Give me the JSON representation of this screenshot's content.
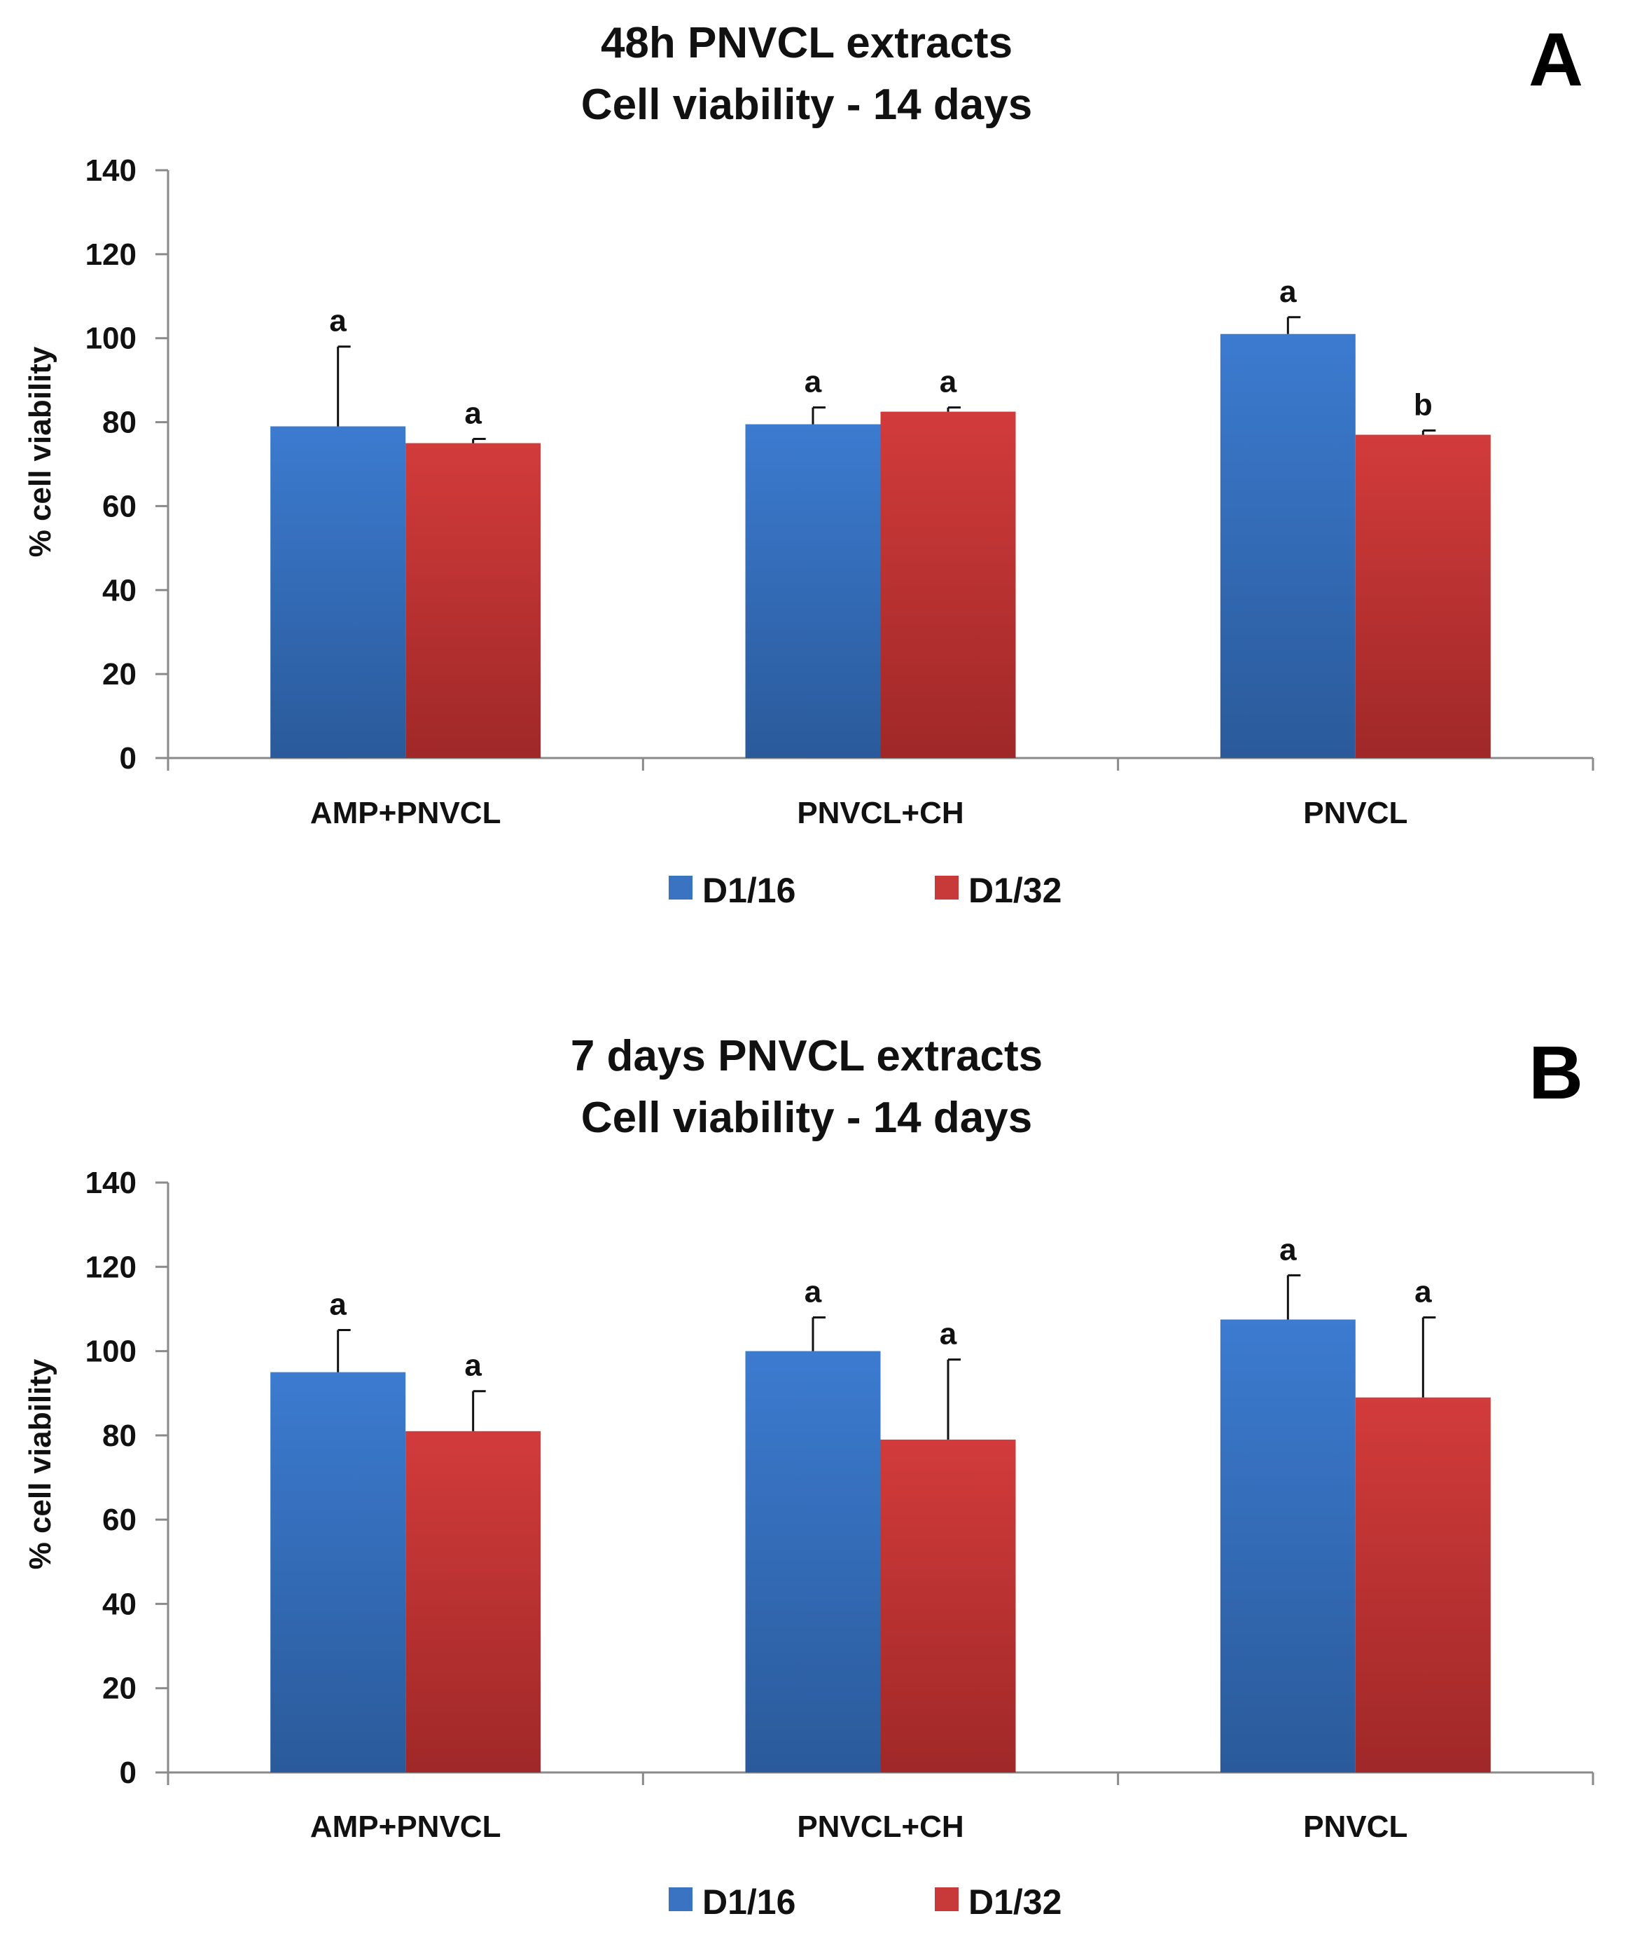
{
  "chart_data": [
    {
      "type": "bar",
      "panel_label": "A",
      "title_lines": [
        "48h PNVCL extracts",
        "Cell viability - 14 days"
      ],
      "ylabel": "% cell viability",
      "xlabel": "",
      "ylim": [
        0,
        140
      ],
      "yticks": [
        0,
        20,
        40,
        60,
        80,
        100,
        120,
        140
      ],
      "categories": [
        "AMP+PNVCL",
        "PNVCL+CH",
        "PNVCL"
      ],
      "series": [
        {
          "name": "D1/16",
          "color": "#3a73c2",
          "values": [
            79,
            79.5,
            101
          ],
          "errors": [
            19,
            4,
            4
          ],
          "labels": [
            "a",
            "a",
            "a"
          ]
        },
        {
          "name": "D1/32",
          "color": "#c83a3a",
          "values": [
            75,
            82.5,
            77
          ],
          "errors": [
            1,
            1,
            1
          ],
          "labels": [
            "a",
            "a",
            "b"
          ]
        }
      ],
      "legend": "bottom-center"
    },
    {
      "type": "bar",
      "panel_label": "B",
      "title_lines": [
        "7 days PNVCL extracts",
        "Cell viability - 14 days"
      ],
      "ylabel": "% cell viability",
      "xlabel": "",
      "ylim": [
        0,
        140
      ],
      "yticks": [
        0,
        20,
        40,
        60,
        80,
        100,
        120,
        140
      ],
      "categories": [
        "AMP+PNVCL",
        "PNVCL+CH",
        "PNVCL"
      ],
      "series": [
        {
          "name": "D1/16",
          "color": "#3a73c2",
          "values": [
            95,
            100,
            107.5
          ],
          "errors": [
            10,
            8,
            10.5
          ],
          "labels": [
            "a",
            "a",
            "a"
          ]
        },
        {
          "name": "D1/32",
          "color": "#c83a3a",
          "values": [
            81,
            79,
            89
          ],
          "errors": [
            9.5,
            19,
            19
          ],
          "labels": [
            "a",
            "a",
            "a"
          ]
        }
      ],
      "legend": "bottom-center"
    }
  ]
}
